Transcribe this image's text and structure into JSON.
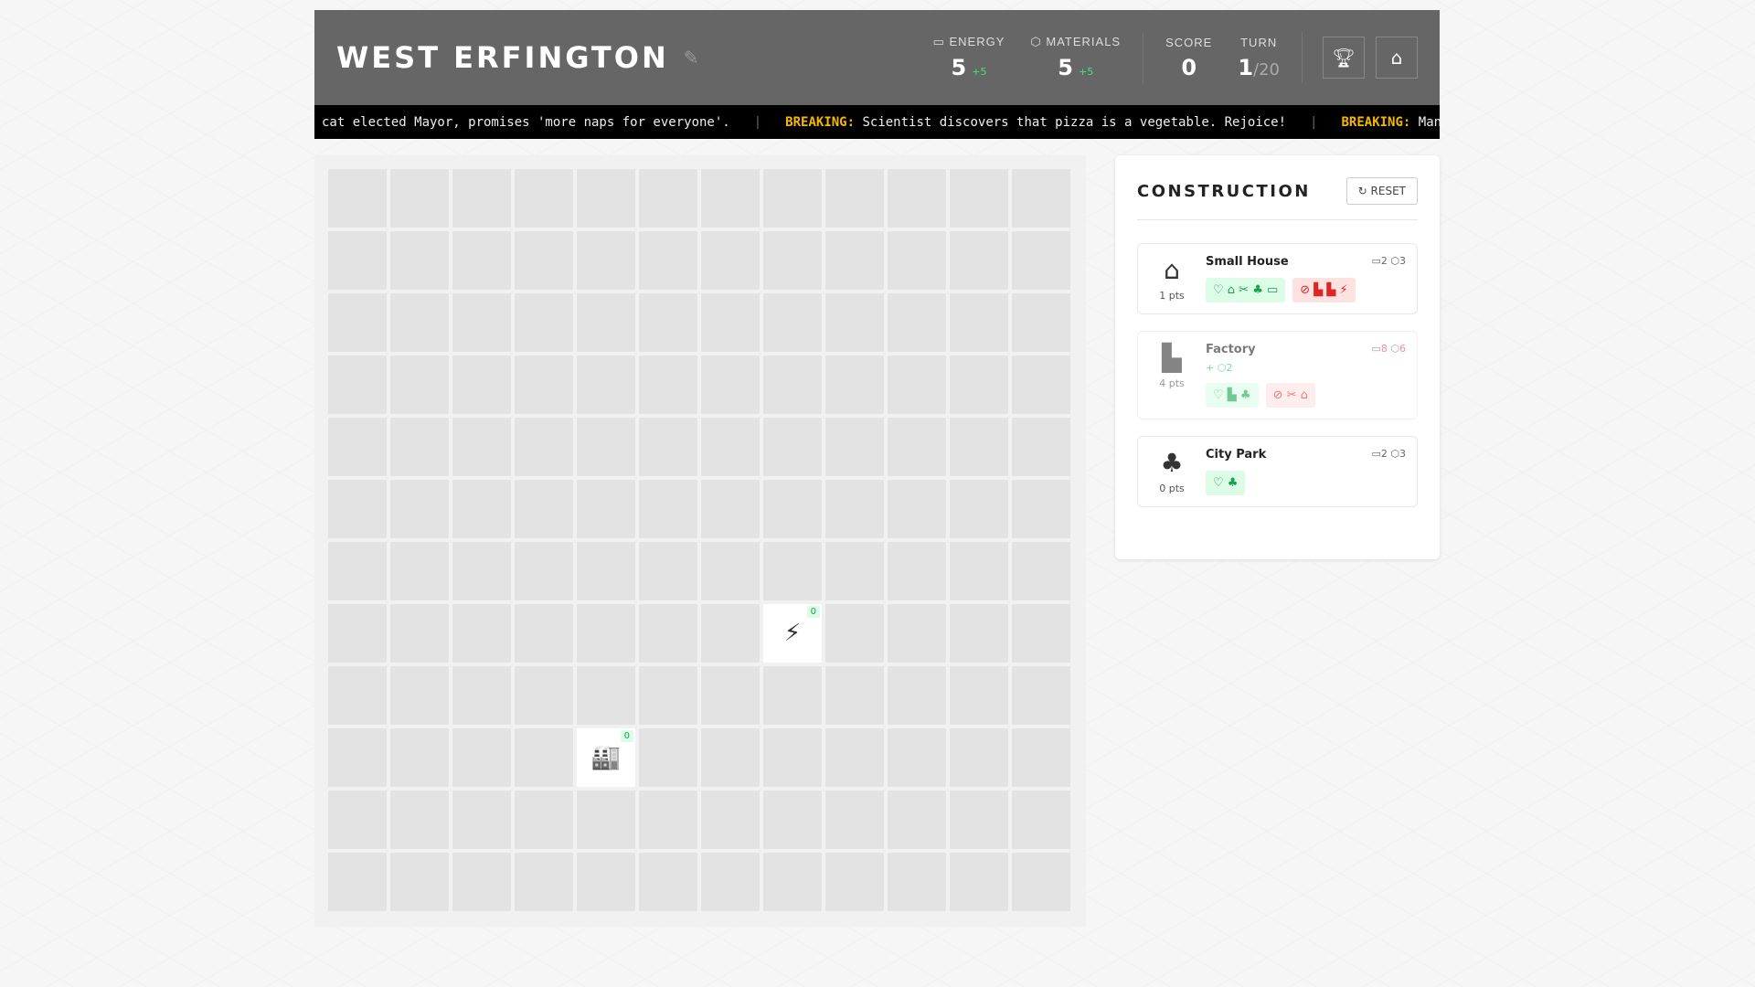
{
  "header": {
    "city_name": "West Erfington",
    "energy_label": "ENERGY",
    "energy_value": "5",
    "energy_delta": "+5",
    "materials_label": "MATERIALS",
    "materials_value": "5",
    "materials_delta": "+5",
    "score_label": "SCORE",
    "score_value": "0",
    "turn_label": "TURN",
    "turn_value": "1",
    "turn_total": "/20"
  },
  "ticker": [
    {
      "prefix": "",
      "text": "cat elected Mayor, promises 'more naps for everyone'."
    },
    {
      "prefix": "BREAKING:",
      "text": " Scientist discovers that pizza is a vegetable. Rejoice!"
    },
    {
      "prefix": "BREAKING:",
      "text": " Man ye"
    }
  ],
  "board": {
    "rows": 12,
    "cols": 12,
    "buildings": [
      {
        "row": 7,
        "col": 7,
        "icon": "lightning-icon",
        "glyph": "⚡",
        "count": "0"
      },
      {
        "row": 9,
        "col": 4,
        "icon": "factory-icon",
        "glyph": "🏭",
        "count": "0"
      }
    ]
  },
  "panel": {
    "title": "CONSTRUCTION",
    "reset_label": "RESET",
    "buildings": [
      {
        "name": "Small House",
        "pts": "1 pts",
        "icon": "⌂",
        "energy": "2",
        "materials": "3",
        "gain": "",
        "likes": "♡ ⌂ ✂ ♣ ▭",
        "dislikes": "⊘ ▙ ▙ ⚡",
        "affordable": true
      },
      {
        "name": "Factory",
        "pts": "4 pts",
        "icon": "▙",
        "energy": "8",
        "materials": "6",
        "gain": "+ ⬡2",
        "likes": "♡ ▙ ♣",
        "dislikes": "⊘ ✂ ⌂",
        "affordable": false
      },
      {
        "name": "City Park",
        "pts": "0 pts",
        "icon": "♣",
        "energy": "2",
        "materials": "3",
        "gain": "",
        "likes": "♡ ♣",
        "dislikes": "",
        "affordable": true
      }
    ]
  },
  "colors": {
    "header": "#666666",
    "ticker_bg": "#000000",
    "breaking": "#f5b800",
    "positive": "#22c55e",
    "negative": "#ef4444"
  }
}
